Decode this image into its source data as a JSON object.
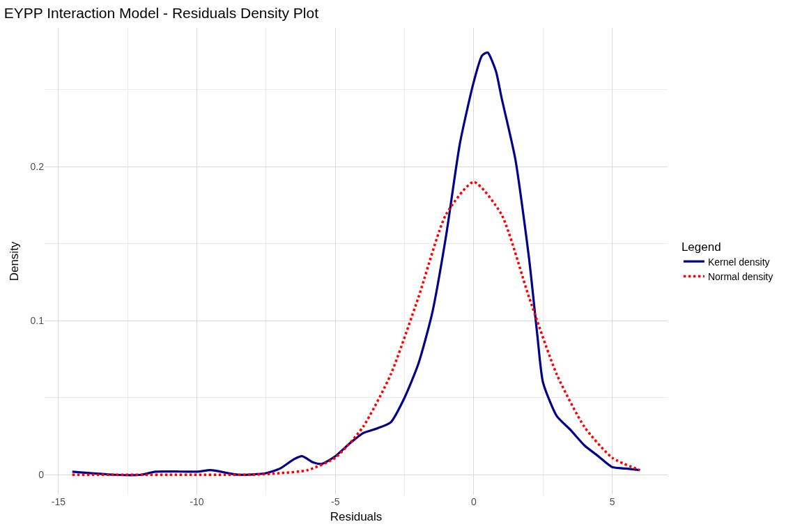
{
  "chart_data": {
    "type": "line",
    "title": "EYPP Interaction Model - Residuals Density Plot",
    "xlabel": "Residuals",
    "ylabel": "Density",
    "legend_title": "Legend",
    "legend": "right",
    "grid": true,
    "marker": "none",
    "xlim": [
      -15.5,
      7.0
    ],
    "xticks": [
      -15,
      -10,
      -5,
      0,
      5
    ],
    "ylim": [
      -0.013,
      0.29
    ],
    "yticks": [
      0,
      0.1,
      0.2
    ],
    "series": [
      {
        "name": "Kernel density",
        "color": "#00008b",
        "line_style": "solid",
        "x": [
          -14.5,
          -13,
          -12,
          -11.5,
          -10,
          -9.5,
          -8.5,
          -7.5,
          -7,
          -6.5,
          -6.2,
          -5.8,
          -5.5,
          -5,
          -4.5,
          -4,
          -3.5,
          -3,
          -2.5,
          -2,
          -1.5,
          -1,
          -0.5,
          0,
          0.3,
          0.5,
          0.8,
          1,
          1.5,
          2,
          2.3,
          2.5,
          3,
          3.5,
          4,
          4.5,
          5,
          5.5,
          6
        ],
        "values": [
          0.002,
          0,
          0,
          0.002,
          0.002,
          0.003,
          0,
          0.001,
          0.004,
          0.01,
          0.012,
          0.008,
          0.007,
          0.012,
          0.02,
          0.027,
          0.03,
          0.034,
          0.05,
          0.072,
          0.105,
          0.155,
          0.215,
          0.255,
          0.272,
          0.274,
          0.262,
          0.245,
          0.205,
          0.14,
          0.09,
          0.06,
          0.038,
          0.029,
          0.019,
          0.012,
          0.005,
          0.004,
          0.003
        ]
      },
      {
        "name": "Normal density",
        "color": "#ff0000",
        "line_style": "dotted",
        "x": [
          -14.5,
          -13,
          -12,
          -11,
          -10,
          -9,
          -8,
          -7,
          -6,
          -5,
          -4,
          -3,
          -2,
          -1,
          0,
          1,
          2,
          3,
          4,
          5,
          6
        ],
        "values": [
          0,
          0,
          0,
          0,
          0,
          0,
          0,
          0.001,
          0.003,
          0.011,
          0.031,
          0.065,
          0.115,
          0.169,
          0.19,
          0.169,
          0.115,
          0.065,
          0.031,
          0.011,
          0.003
        ]
      }
    ]
  }
}
